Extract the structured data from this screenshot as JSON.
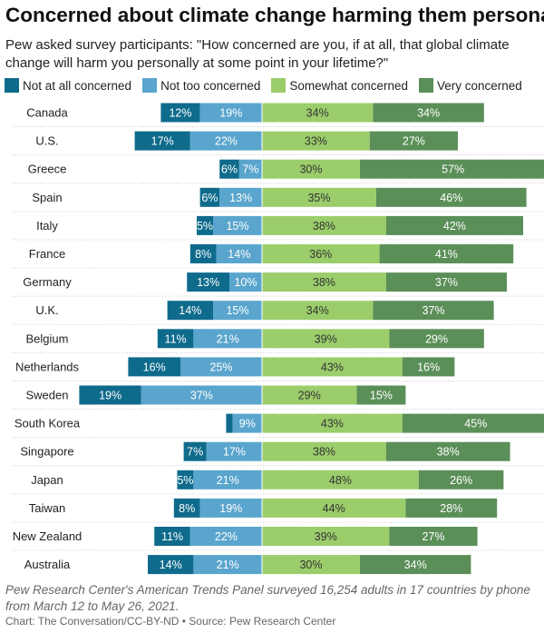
{
  "chart_data": {
    "type": "bar",
    "stacked": "diverging",
    "title": "Concerned about climate change harming them personally",
    "subtitle": "Pew asked survey participants: \"How concerned are you, if at all, that global climate change will harm you personally at some point in your lifetime?\"",
    "legend_placement": "top-left",
    "grid": false,
    "categories": [
      "Canada",
      "U.S.",
      "Greece",
      "Spain",
      "Italy",
      "France",
      "Germany",
      "U.K.",
      "Belgium",
      "Netherlands",
      "Sweden",
      "South Korea",
      "Singapore",
      "Japan",
      "Taiwan",
      "New Zealand",
      "Australia"
    ],
    "series": [
      {
        "name": "Not at all concerned",
        "color": "#0f6b8c",
        "values": [
          12,
          17,
          6,
          6,
          5,
          8,
          13,
          14,
          11,
          16,
          19,
          2,
          7,
          5,
          8,
          11,
          14
        ],
        "labels": [
          "12%",
          "17%",
          "6%",
          "6%",
          "5%",
          "8%",
          "13%",
          "14%",
          "11%",
          "16%",
          "19%",
          "",
          "7%",
          "5%",
          "8%",
          "11%",
          "14%"
        ]
      },
      {
        "name": "Not too concerned",
        "color": "#5aa5cd",
        "values": [
          19,
          22,
          7,
          13,
          15,
          14,
          10,
          15,
          21,
          25,
          37,
          9,
          17,
          21,
          19,
          22,
          21
        ],
        "labels": [
          "19%",
          "22%",
          "7%",
          "13%",
          "15%",
          "14%",
          "10%",
          "15%",
          "21%",
          "25%",
          "37%",
          "9%",
          "17%",
          "21%",
          "19%",
          "22%",
          "21%"
        ]
      },
      {
        "name": "Somewhat concerned",
        "color": "#9bcd6b",
        "values": [
          34,
          33,
          30,
          35,
          38,
          36,
          38,
          34,
          39,
          43,
          29,
          43,
          38,
          48,
          44,
          39,
          30
        ],
        "labels": [
          "34%",
          "33%",
          "30%",
          "35%",
          "38%",
          "36%",
          "38%",
          "34%",
          "39%",
          "43%",
          "29%",
          "43%",
          "38%",
          "48%",
          "44%",
          "39%",
          "30%"
        ]
      },
      {
        "name": "Very concerned",
        "color": "#5b8f58",
        "values": [
          34,
          27,
          57,
          46,
          42,
          41,
          37,
          37,
          29,
          16,
          15,
          45,
          38,
          26,
          28,
          27,
          34
        ],
        "labels": [
          "34%",
          "27%",
          "57%",
          "46%",
          "42%",
          "41%",
          "37%",
          "37%",
          "29%",
          "16%",
          "15%",
          "45%",
          "38%",
          "26%",
          "28%",
          "27%",
          "34%"
        ]
      }
    ]
  },
  "footer": {
    "note": "Pew Research Center's American Trends Panel surveyed 16,254 adults in 17 countries by phone from March 12 to May 26, 2021.",
    "credit": "Chart: The Conversation/CC-BY-ND • Source: Pew Research Center"
  }
}
